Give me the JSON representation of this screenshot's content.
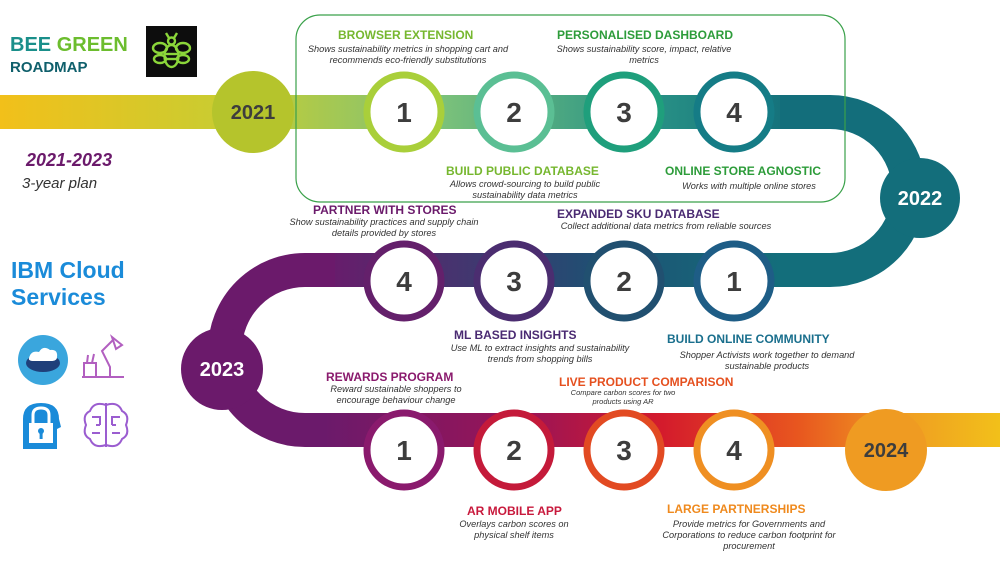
{
  "brand": {
    "word1": "BEE",
    "word2": "GREEN",
    "subtitle": "ROADMAP",
    "logo_icon": "bee-logo-icon"
  },
  "plan": {
    "range": "2021-2023",
    "description": "3-year plan"
  },
  "ibm": {
    "title": "IBM Cloud Services",
    "icons": [
      "cloud-database-icon",
      "desk-lamp-icon",
      "security-lock-icon",
      "ai-brain-icon"
    ]
  },
  "years": [
    {
      "label": "2021",
      "color": "#b5c42c"
    },
    {
      "label": "2022",
      "color": "#136e7b"
    },
    {
      "label": "2023",
      "color": "#6b1a6b"
    },
    {
      "label": "2024",
      "color": "#ef9b22"
    }
  ],
  "rows": [
    {
      "steps": [
        {
          "number": "1",
          "ring_color": "#a9cf3a",
          "label": "BROWSER EXTENSION",
          "label_color": "#76b72f",
          "description": "Shows sustainability metrics in shopping cart and recommends eco-friendly substitutions"
        },
        {
          "number": "2",
          "ring_color": "#5bbf94",
          "label": "BUILD PUBLIC DATABASE",
          "label_color": "#76b72f",
          "description": "Allows crowd-sourcing to build public sustainability data metrics"
        },
        {
          "number": "3",
          "ring_color": "#1f9f7c",
          "label": "PERSONALISED DASHBOARD",
          "label_color": "#2d9c3a",
          "description": "Shows sustainability score, impact, relative metrics"
        },
        {
          "number": "4",
          "ring_color": "#157c86",
          "label": "ONLINE STORE AGNOSTIC",
          "label_color": "#2d9c3a",
          "description": "Works with multiple online stores"
        }
      ]
    },
    {
      "steps": [
        {
          "number": "1",
          "ring_color": "#1e5d86",
          "label": "BUILD ONLINE COMMUNITY",
          "label_color": "#1a6f8d",
          "description": "Shopper Activists work together to demand sustainable products"
        },
        {
          "number": "2",
          "ring_color": "#215070",
          "label": "EXPANDED SKU DATABASE",
          "label_color": "#4a2a72",
          "description": "Collect additional data metrics from reliable sources"
        },
        {
          "number": "3",
          "ring_color": "#4b2d70",
          "label": "ML BASED INSIGHTS",
          "label_color": "#4a2a72",
          "description": "Use ML to extract insights and sustainability trends from shopping bills"
        },
        {
          "number": "4",
          "ring_color": "#64206b",
          "label": "PARTNER WITH STORES",
          "label_color": "#6b1a6b",
          "description": "Show sustainability practices and supply chain details provided by stores"
        }
      ]
    },
    {
      "steps": [
        {
          "number": "1",
          "ring_color": "#8a1a6d",
          "label": "REWARDS PROGRAM",
          "label_color": "#8a1a6d",
          "description": "Reward sustainable shoppers to encourage behaviour change"
        },
        {
          "number": "2",
          "ring_color": "#c41a3a",
          "label": "AR MOBILE APP",
          "label_color": "#c8193c",
          "description": "Overlays carbon scores on physical shelf items"
        },
        {
          "number": "3",
          "ring_color": "#e24a22",
          "label": "LIVE PRODUCT COMPARISON",
          "label_color": "#e5501f",
          "description": "Compare carbon scores for two products using AR"
        },
        {
          "number": "4",
          "ring_color": "#ef8f22",
          "label": "LARGE PARTNERSHIPS",
          "label_color": "#ef8a1e",
          "description": "Provide metrics for Governments and Corporations to reduce carbon footprint for procurement"
        }
      ]
    }
  ]
}
